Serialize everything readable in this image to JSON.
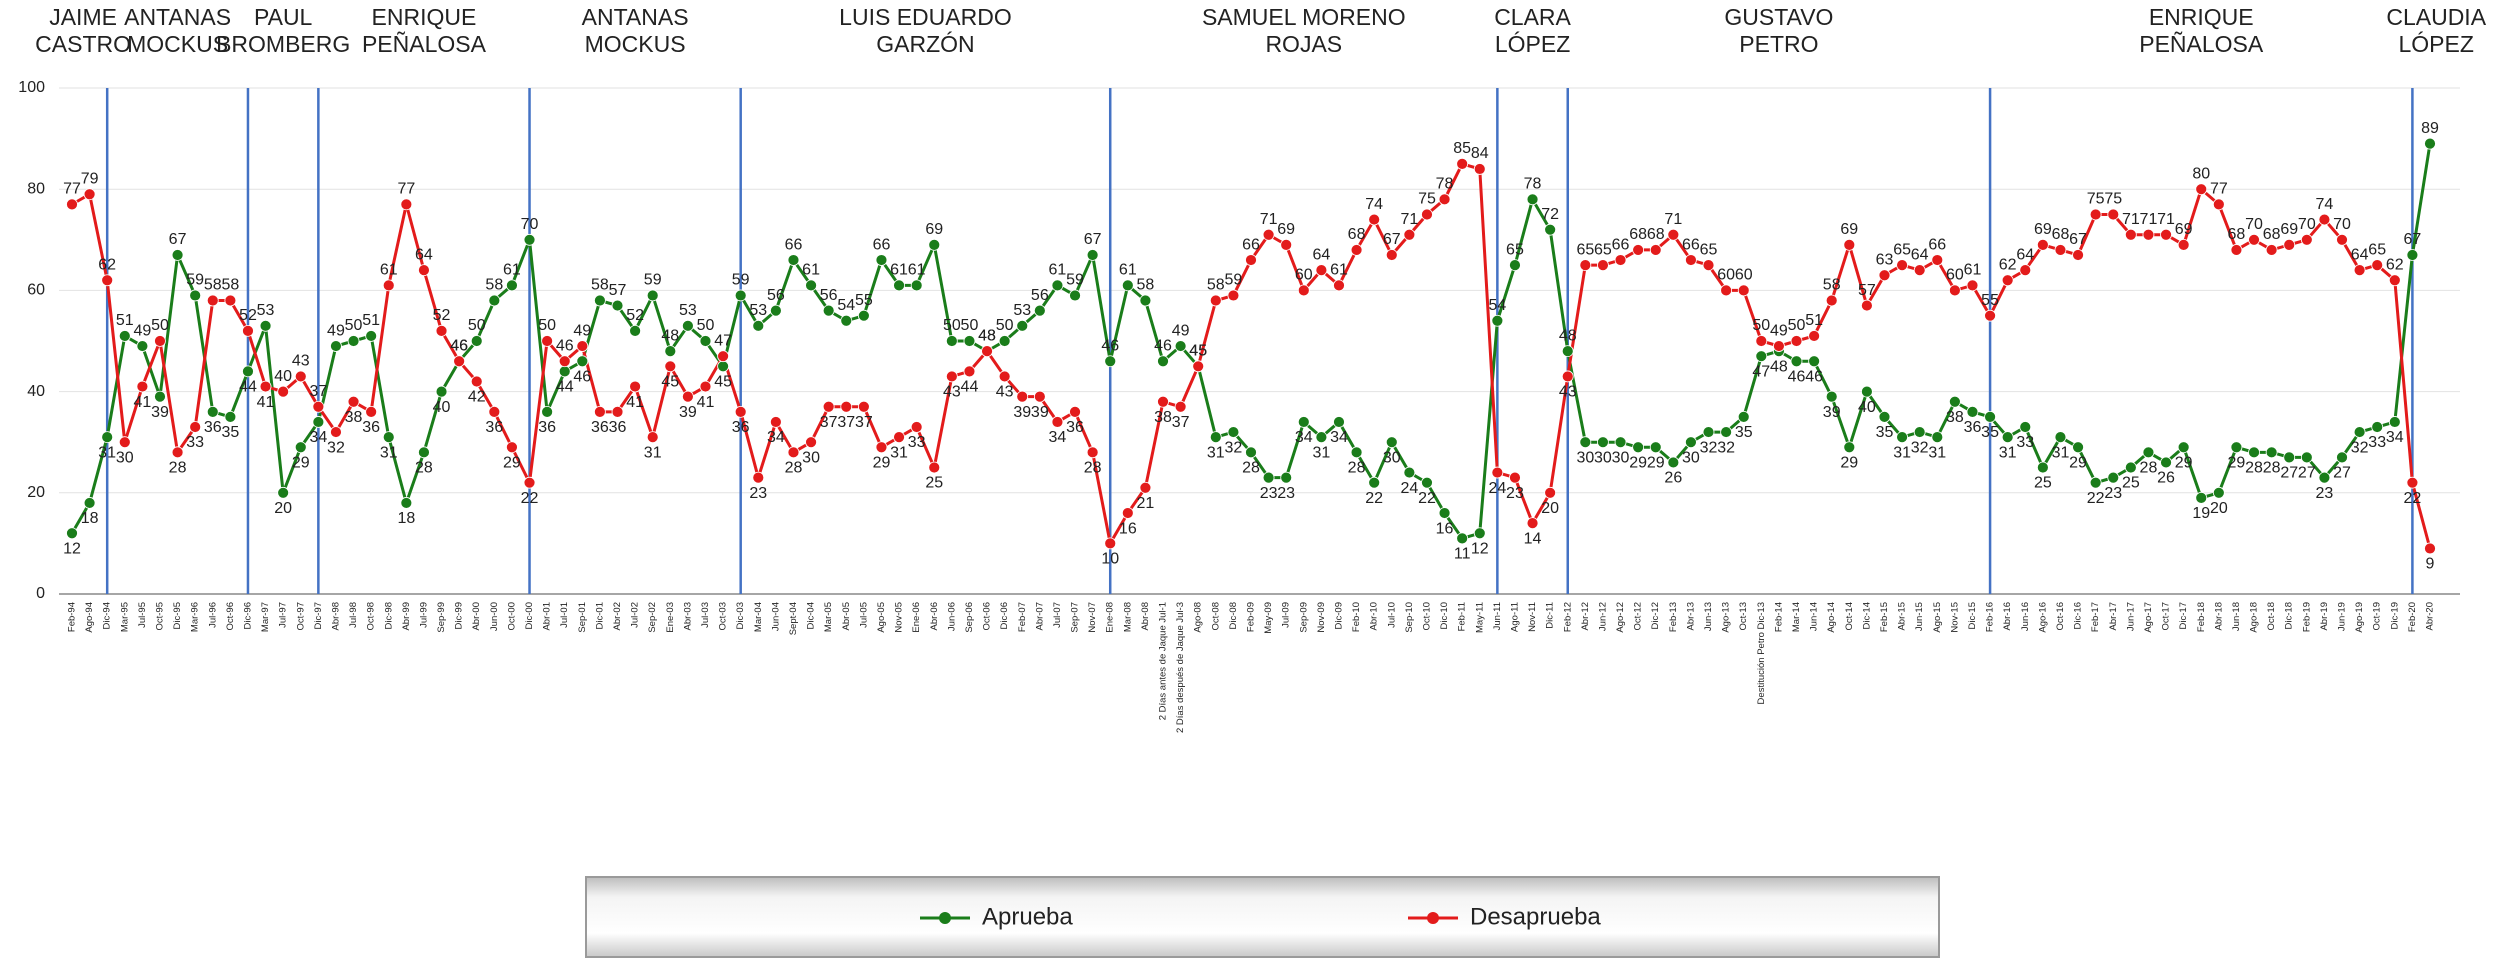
{
  "chart_data": {
    "type": "line",
    "categories": [
      "Feb-94",
      "Ago-94",
      "Dic-94",
      "Mar-95",
      "Jul-95",
      "Oct-95",
      "Dic-95",
      "Mar-96",
      "Jul-96",
      "Oct-96",
      "Dic-96",
      "Mar-97",
      "Jul-97",
      "Oct-97",
      "Dic-97",
      "Abr-98",
      "Jul-98",
      "Oct-98",
      "Dic-98",
      "Abr-99",
      "Jul-99",
      "Sep-99",
      "Dic-99",
      "Abr-00",
      "Jun-00",
      "Oct-00",
      "Dic-00",
      "Abr-01",
      "Jul-01",
      "Sep-01",
      "Dic-01",
      "Abr-02",
      "Jul-02",
      "Sep-02",
      "Ene-03",
      "Abr-03",
      "Jul-03",
      "Oct-03",
      "Dic-03",
      "Mar-04",
      "Jun-04",
      "Sept-04",
      "Dic-04",
      "Mar-05",
      "Abr-05",
      "Jul-05",
      "Ago-05",
      "Nov-05",
      "Ene-06",
      "Abr-06",
      "Jun-06",
      "Sep-06",
      "Oct-06",
      "Dic-06",
      "Feb-07",
      "Abr-07",
      "Jul-07",
      "Sep-07",
      "Nov-07",
      "Ene-08",
      "Mar-08",
      "Abr-08",
      "2 Días antes de Jaque Jul-1",
      "2 Días después de Jaque Jul-3",
      "Ago-08",
      "Oct-08",
      "Dic-08",
      "Feb-09",
      "May-09",
      "Jul-09",
      "Sep-09",
      "Nov-09",
      "Dic-09",
      "Feb-10",
      "Abr-10",
      "Jul-10",
      "Sep-10",
      "Oct-10",
      "Dic-10",
      "Feb-11",
      "May-11",
      "Jun-11",
      "Ago-11",
      "Nov-11",
      "Dic-11",
      "Feb-12",
      "Abr-12",
      "Jun-12",
      "Ago-12",
      "Oct-12",
      "Dic-12",
      "Feb-13",
      "Abr-13",
      "Jun-13",
      "Ago-13",
      "Oct-13",
      "Destitución Petro Dic-13",
      "Feb-14",
      "Mar-14",
      "Jun-14",
      "Ago-14",
      "Oct-14",
      "Dic-14",
      "Feb-15",
      "Abr-15",
      "Jun-15",
      "Ago-15",
      "Nov-15",
      "Dic-15",
      "Feb-16",
      "Abr-16",
      "Jun-16",
      "Ago-16",
      "Oct-16",
      "Dic-16",
      "Feb-17",
      "Abr-17",
      "Jun-17",
      "Ago-17",
      "Oct-17",
      "Dic-17",
      "Feb-18",
      "Abr-18",
      "Jun-18",
      "Ago-18",
      "Oct-18",
      "Dic-18",
      "Feb-19",
      "Abr-19",
      "Jun-19",
      "Ago-19",
      "Oct-19",
      "Dic-19",
      "Feb-20",
      "Abr-20"
    ],
    "series": [
      {
        "name": "Aprueba",
        "color": "#1a7d1a",
        "values": [
          12,
          18,
          31,
          51,
          49,
          39,
          67,
          59,
          36,
          35,
          44,
          53,
          20,
          29,
          34,
          49,
          50,
          51,
          31,
          18,
          28,
          40,
          46,
          50,
          58,
          61,
          70,
          36,
          44,
          46,
          58,
          57,
          52,
          59,
          48,
          53,
          50,
          45,
          59,
          53,
          56,
          66,
          61,
          56,
          54,
          55,
          66,
          61,
          61,
          69,
          50,
          50,
          48,
          50,
          53,
          56,
          61,
          59,
          67,
          46,
          61,
          58,
          46,
          49,
          45,
          31,
          32,
          28,
          23,
          23,
          34,
          31,
          34,
          28,
          22,
          30,
          24,
          22,
          16,
          11,
          12,
          54,
          65,
          78,
          72,
          48,
          30,
          30,
          30,
          29,
          29,
          26,
          30,
          32,
          32,
          35,
          47,
          48,
          46,
          46,
          39,
          29,
          40,
          35,
          31,
          32,
          31,
          38,
          36,
          35,
          31,
          33,
          25,
          31,
          29,
          22,
          23,
          25,
          28,
          26,
          29,
          19,
          20,
          29,
          28,
          28,
          27,
          27,
          23,
          27,
          32,
          33,
          34,
          67,
          89
        ]
      },
      {
        "name": "Desaprueba",
        "color": "#e31b1b",
        "values": [
          77,
          79,
          62,
          30,
          41,
          50,
          28,
          33,
          58,
          58,
          52,
          41,
          40,
          43,
          37,
          32,
          38,
          36,
          61,
          77,
          64,
          52,
          46,
          42,
          36,
          29,
          22,
          50,
          46,
          49,
          36,
          36,
          41,
          31,
          45,
          39,
          41,
          47,
          36,
          23,
          34,
          28,
          30,
          37,
          37,
          37,
          29,
          31,
          33,
          25,
          43,
          44,
          48,
          43,
          39,
          39,
          34,
          36,
          28,
          10,
          16,
          21,
          38,
          37,
          45,
          58,
          59,
          66,
          71,
          69,
          60,
          64,
          61,
          68,
          74,
          67,
          71,
          75,
          78,
          85,
          84,
          24,
          23,
          14,
          20,
          43,
          65,
          65,
          66,
          68,
          68,
          71,
          66,
          65,
          60,
          60,
          50,
          49,
          50,
          51,
          58,
          69,
          57,
          63,
          65,
          64,
          66,
          60,
          61,
          55,
          62,
          64,
          69,
          68,
          67,
          75,
          75,
          71,
          71,
          71,
          69,
          80,
          77,
          68,
          70,
          68,
          69,
          70,
          74,
          70,
          64,
          65,
          62,
          22,
          9
        ]
      }
    ],
    "periods": [
      {
        "name": [
          "JAIME",
          "CASTRO"
        ],
        "end": "Dic-94"
      },
      {
        "name": [
          "ANTANAS",
          "MOCKUS"
        ],
        "end": "Dic-96"
      },
      {
        "name": [
          "PAUL",
          "BROMBERG"
        ],
        "end": "Dic-97"
      },
      {
        "name": [
          "ENRIQUE",
          "PEÑALOSA"
        ],
        "end": "Dic-00"
      },
      {
        "name": [
          "ANTANAS",
          "MOCKUS"
        ],
        "end": "Dic-03"
      },
      {
        "name": [
          "LUIS EDUARDO",
          "GARZÓN"
        ],
        "end": "Ene-08"
      },
      {
        "name": [
          "SAMUEL MORENO",
          "ROJAS"
        ],
        "end": "Jun-11"
      },
      {
        "name": [
          "CLARA",
          "LÓPEZ"
        ],
        "end": "Feb-12"
      },
      {
        "name": [
          "GUSTAVO",
          "PETRO"
        ],
        "end": "Feb-16"
      },
      {
        "name": [
          "ENRIQUE",
          "PEÑALOSA"
        ],
        "end": "Feb-20"
      },
      {
        "name": [
          "CLAUDIA",
          "LÓPEZ"
        ]
      }
    ],
    "ylim": [
      0,
      100
    ],
    "yticks": [
      0,
      20,
      40,
      60,
      80,
      100
    ],
    "grid": true,
    "legend": "bottom"
  }
}
